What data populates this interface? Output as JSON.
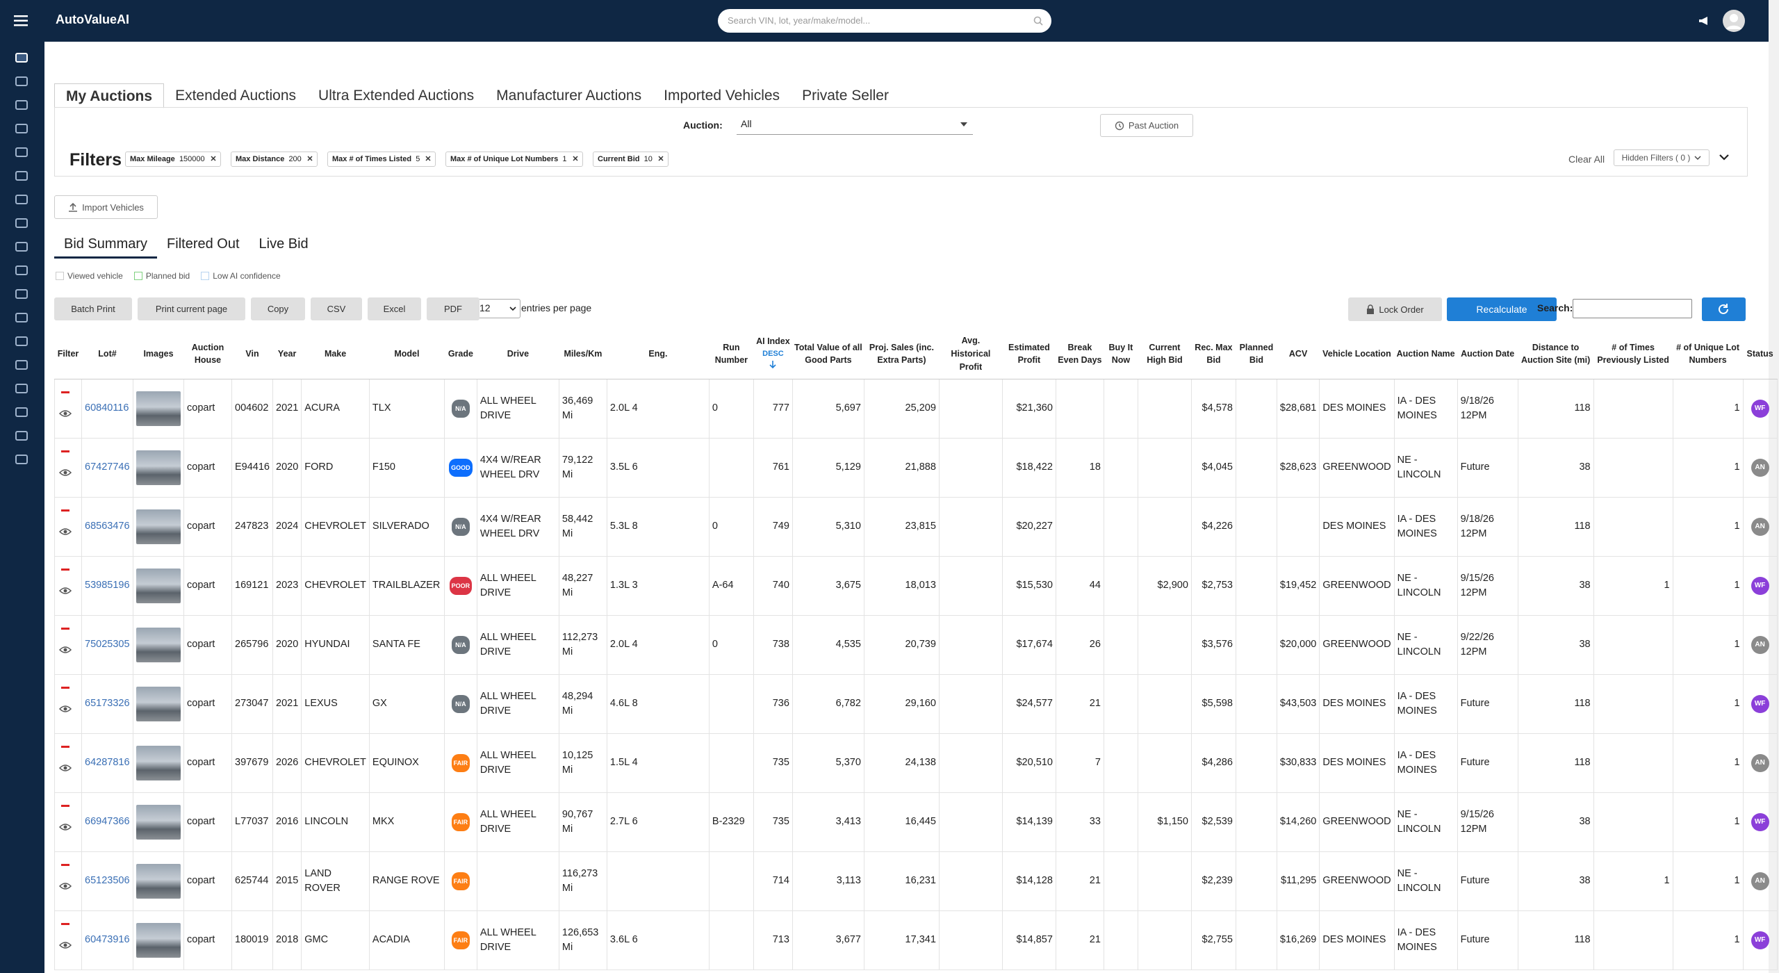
{
  "header": {
    "brand": "AutoValueAI",
    "search_placeholder": "Search VIN, lot, year/make/model..."
  },
  "tabs": [
    "My Auctions",
    "Extended Auctions",
    "Ultra Extended Auctions",
    "Manufacturer Auctions",
    "Imported Vehicles",
    "Private Seller"
  ],
  "auction": {
    "label": "Auction:",
    "value": "All",
    "past_button": "Past Auction"
  },
  "filters": {
    "title": "Filters",
    "chips": [
      {
        "label": "Max Mileage",
        "value": "150000"
      },
      {
        "label": "Max Distance",
        "value": "200"
      },
      {
        "label": "Max # of Times Listed",
        "value": "5"
      },
      {
        "label": "Max # of Unique Lot Numbers",
        "value": "1"
      },
      {
        "label": "Current Bid",
        "value": "10"
      }
    ],
    "clear": "Clear All",
    "hidden": "Hidden Filters ( 0 )"
  },
  "import_button": "Import Vehicles",
  "subtabs": [
    "Bid Summary",
    "Filtered Out",
    "Live Bid"
  ],
  "legend": [
    {
      "label": "Viewed vehicle",
      "color": "#cccccc"
    },
    {
      "label": "Planned bid",
      "color": "#7fd17f"
    },
    {
      "label": "Low AI confidence",
      "color": "#b8d4f0"
    }
  ],
  "toolbar": {
    "buttons": [
      "Batch Print",
      "Print current page",
      "Copy",
      "CSV",
      "Excel",
      "PDF"
    ],
    "entries_value": "12",
    "entries_text": "entries per page",
    "lock": "Lock Order",
    "recalculate": "Recalculate",
    "search_label": "Search:"
  },
  "badge_colors": {
    "N/A": "#6c757d",
    "GOOD": "#0d6efd",
    "POOR": "#dc3545",
    "FAIR": "#fd7e14",
    "WF": "#8b3fd9",
    "AN": "#8a8a8a"
  },
  "table": {
    "columns": [
      "Filter",
      "Lot#",
      "Images",
      "Auction House",
      "Vin",
      "Year",
      "Make",
      "Model",
      "Grade",
      "Drive",
      "Miles/Km",
      "Eng.",
      "Run Number",
      "AI Index",
      "Total Value of all Good Parts",
      "Proj. Sales (inc. Extra Parts)",
      "Avg. Historical Profit",
      "Estimated Profit",
      "Break Even Days",
      "Buy It Now",
      "Current High Bid",
      "Rec. Max Bid",
      "Planned Bid",
      "ACV",
      "Vehicle Location",
      "Auction Name",
      "Auction Date",
      "Distance to Auction Site (mi)",
      "# of Times Previously Listed",
      "# of Unique Lot Numbers",
      "Status"
    ],
    "sort_label": "DESC",
    "rows": [
      [
        "60840116",
        "copart",
        "004602",
        "2021",
        "ACURA",
        "TLX",
        "N/A",
        "ALL WHEEL DRIVE",
        "36,469 Mi",
        "2.0L 4",
        "0",
        "777",
        "5,697",
        "25,209",
        null,
        "$21,360",
        null,
        null,
        null,
        "$4,578",
        null,
        "$28,681",
        "DES MOINES",
        "IA - DES MOINES",
        "9/18/26 12PM",
        "118",
        null,
        "1",
        "WF"
      ],
      [
        "67427746",
        "copart",
        "E94416",
        "2020",
        "FORD",
        "F150",
        "GOOD",
        "4X4 W/REAR WHEEL DRV",
        "79,122 Mi",
        "3.5L 6",
        null,
        "761",
        "5,129",
        "21,888",
        null,
        "$18,422",
        "18",
        null,
        null,
        "$4,045",
        null,
        "$28,623",
        "GREENWOOD",
        "NE - LINCOLN",
        "Future",
        "38",
        null,
        "1",
        "AN"
      ],
      [
        "68563476",
        "copart",
        "247823",
        "2024",
        "CHEVROLET",
        "SILVERADO",
        "N/A",
        "4X4 W/REAR WHEEL DRV",
        "58,442 Mi",
        "5.3L 8",
        "0",
        "749",
        "5,310",
        "23,815",
        null,
        "$20,227",
        null,
        null,
        null,
        "$4,226",
        null,
        null,
        "DES MOINES",
        "IA - DES MOINES",
        "9/18/26 12PM",
        "118",
        null,
        "1",
        "AN"
      ],
      [
        "53985196",
        "copart",
        "169121",
        "2023",
        "CHEVROLET",
        "TRAILBLAZER",
        "POOR",
        "ALL WHEEL DRIVE",
        "48,227 Mi",
        "1.3L 3",
        "A-64",
        "740",
        "3,675",
        "18,013",
        null,
        "$15,530",
        "44",
        null,
        "$2,900",
        "$2,753",
        null,
        "$19,452",
        "GREENWOOD",
        "NE - LINCOLN",
        "9/15/26 12PM",
        "38",
        "1",
        "1",
        "WF"
      ],
      [
        "75025305",
        "copart",
        "265796",
        "2020",
        "HYUNDAI",
        "SANTA FE",
        "N/A",
        "ALL WHEEL DRIVE",
        "112,273 Mi",
        "2.0L 4",
        "0",
        "738",
        "4,535",
        "20,739",
        null,
        "$17,674",
        "26",
        null,
        null,
        "$3,576",
        null,
        "$20,000",
        "GREENWOOD",
        "NE - LINCOLN",
        "9/22/26 12PM",
        "38",
        null,
        "1",
        "AN"
      ],
      [
        "65173326",
        "copart",
        "273047",
        "2021",
        "LEXUS",
        "GX",
        "N/A",
        "ALL WHEEL DRIVE",
        "48,294 Mi",
        "4.6L 8",
        null,
        "736",
        "6,782",
        "29,160",
        null,
        "$24,577",
        "21",
        null,
        null,
        "$5,598",
        null,
        "$43,503",
        "DES MOINES",
        "IA - DES MOINES",
        "Future",
        "118",
        null,
        "1",
        "WF"
      ],
      [
        "64287816",
        "copart",
        "397679",
        "2026",
        "CHEVROLET",
        "EQUINOX",
        "FAIR",
        "ALL WHEEL DRIVE",
        "10,125 Mi",
        "1.5L 4",
        null,
        "735",
        "5,370",
        "24,138",
        null,
        "$20,510",
        "7",
        null,
        null,
        "$4,286",
        null,
        "$30,833",
        "DES MOINES",
        "IA - DES MOINES",
        "Future",
        "118",
        null,
        "1",
        "AN"
      ],
      [
        "66947366",
        "copart",
        "L77037",
        "2016",
        "LINCOLN",
        "MKX",
        "FAIR",
        "ALL WHEEL DRIVE",
        "90,767 Mi",
        "2.7L 6",
        "B-2329",
        "735",
        "3,413",
        "16,445",
        null,
        "$14,139",
        "33",
        null,
        "$1,150",
        "$2,539",
        null,
        "$14,260",
        "GREENWOOD",
        "NE - LINCOLN",
        "9/15/26 12PM",
        "38",
        null,
        "1",
        "WF"
      ],
      [
        "65123506",
        "copart",
        "625744",
        "2015",
        "LAND ROVER",
        "RANGE ROVE",
        "FAIR",
        null,
        "116,273 Mi",
        null,
        null,
        "714",
        "3,113",
        "16,231",
        null,
        "$14,128",
        "21",
        null,
        null,
        "$2,239",
        null,
        "$11,295",
        "GREENWOOD",
        "NE - LINCOLN",
        "Future",
        "38",
        "1",
        "1",
        "AN"
      ],
      [
        "60473916",
        "copart",
        "180019",
        "2018",
        "GMC",
        "ACADIA",
        "FAIR",
        "ALL WHEEL DRIVE",
        "126,653 Mi",
        "3.6L 6",
        null,
        "713",
        "3,677",
        "17,341",
        null,
        "$14,857",
        "21",
        null,
        null,
        "$2,755",
        null,
        "$16,269",
        "DES MOINES",
        "IA - DES MOINES",
        "Future",
        "118",
        null,
        "1",
        "WF"
      ]
    ]
  }
}
